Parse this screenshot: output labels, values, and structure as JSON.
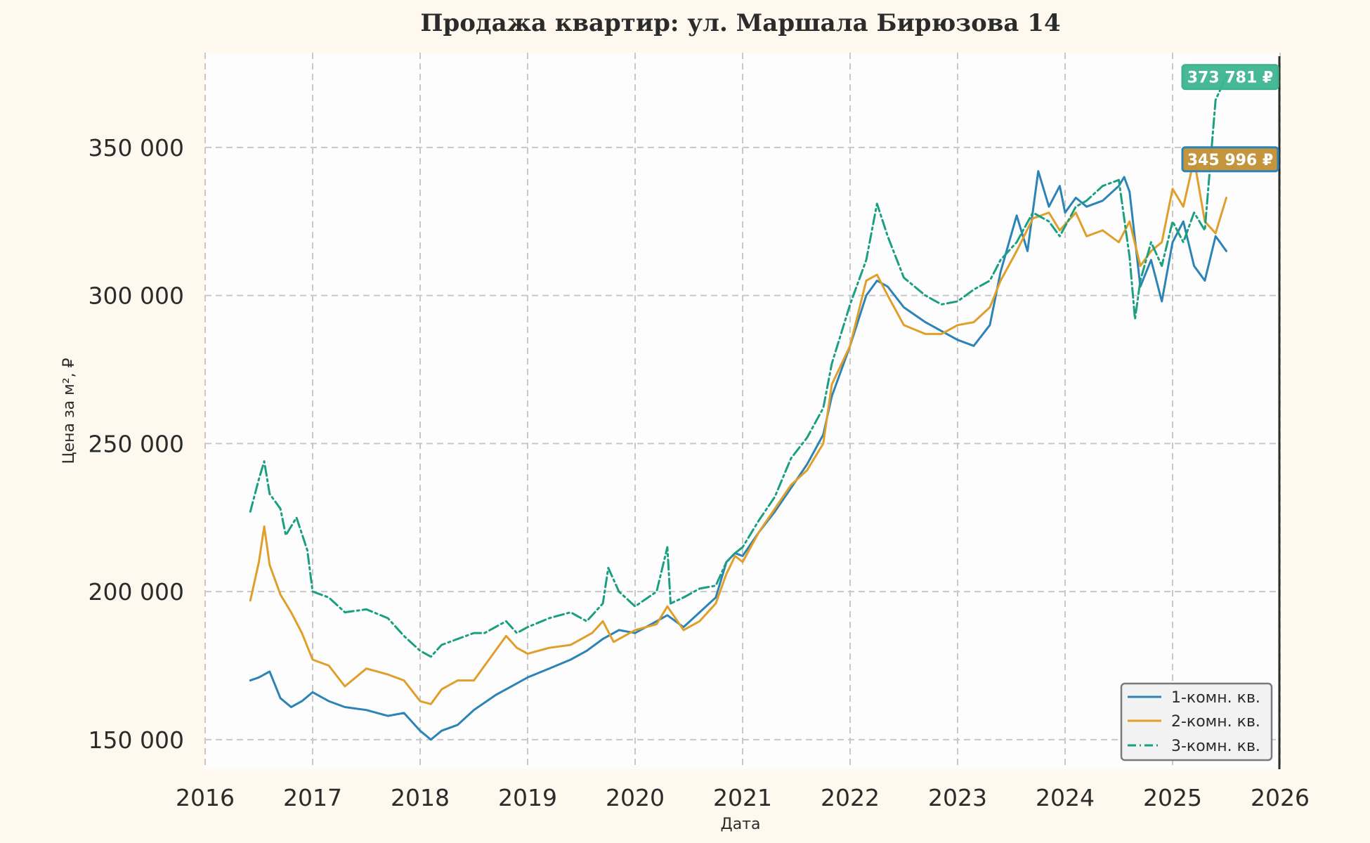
{
  "chart_data": {
    "type": "line",
    "title": "Продажа квартир: ул. Маршала Бирюзова 14",
    "xlabel": "Дата",
    "ylabel": "Цена за м², ₽",
    "xlim": [
      2016,
      2026
    ],
    "ylim": [
      140000,
      382000
    ],
    "x_ticks": [
      2016,
      2017,
      2018,
      2019,
      2020,
      2021,
      2022,
      2023,
      2024,
      2025,
      2026
    ],
    "x_tick_labels": [
      "2016",
      "2017",
      "2018",
      "2019",
      "2020",
      "2021",
      "2022",
      "2023",
      "2024",
      "2025",
      "2026"
    ],
    "y_ticks": [
      150000,
      200000,
      250000,
      300000,
      350000
    ],
    "y_tick_labels": [
      "150 000",
      "200 000",
      "250 000",
      "300 000",
      "350 000"
    ],
    "grid": true,
    "legend_position": "bottom-right",
    "current_marker_x": 2026,
    "series": [
      {
        "name": "1-комн. кв.",
        "color": "#2b83b6",
        "style": "solid",
        "x": [
          2016.42,
          2016.5,
          2016.6,
          2016.7,
          2016.8,
          2016.9,
          2017.0,
          2017.15,
          2017.3,
          2017.5,
          2017.7,
          2017.85,
          2018.0,
          2018.1,
          2018.2,
          2018.35,
          2018.5,
          2018.7,
          2018.9,
          2019.0,
          2019.2,
          2019.4,
          2019.55,
          2019.7,
          2019.85,
          2020.0,
          2020.2,
          2020.3,
          2020.45,
          2020.6,
          2020.75,
          2020.85,
          2020.93,
          2021.0,
          2021.15,
          2021.3,
          2021.45,
          2021.6,
          2021.75,
          2021.83,
          2022.0,
          2022.15,
          2022.25,
          2022.35,
          2022.5,
          2022.7,
          2022.85,
          2023.0,
          2023.15,
          2023.3,
          2023.4,
          2023.55,
          2023.65,
          2023.75,
          2023.85,
          2023.95,
          2024.0,
          2024.1,
          2024.2,
          2024.35,
          2024.5,
          2024.55,
          2024.6,
          2024.7,
          2024.8,
          2024.9,
          2025.0,
          2025.1,
          2025.2,
          2025.3,
          2025.4,
          2025.5
        ],
        "values": [
          170000,
          171000,
          173000,
          164000,
          161000,
          163000,
          166000,
          163000,
          161000,
          160000,
          158000,
          159000,
          153000,
          150000,
          153000,
          155000,
          160000,
          165000,
          169000,
          171000,
          174000,
          177000,
          180000,
          184000,
          187000,
          186000,
          190000,
          192000,
          188000,
          193000,
          198000,
          210000,
          213000,
          212000,
          220000,
          227000,
          235000,
          243000,
          253000,
          266000,
          283000,
          300000,
          305000,
          303000,
          296000,
          291000,
          288000,
          285000,
          283000,
          290000,
          308000,
          327000,
          315000,
          342000,
          330000,
          337000,
          328000,
          333000,
          330000,
          332000,
          337000,
          340000,
          335000,
          303000,
          312000,
          298000,
          318000,
          325000,
          310000,
          305000,
          320000,
          315000
        ]
      },
      {
        "name": "2-комн. кв.",
        "color": "#e09e2a",
        "style": "solid",
        "x": [
          2016.42,
          2016.5,
          2016.55,
          2016.6,
          2016.7,
          2016.8,
          2016.9,
          2017.0,
          2017.15,
          2017.3,
          2017.5,
          2017.7,
          2017.85,
          2018.0,
          2018.1,
          2018.2,
          2018.35,
          2018.5,
          2018.7,
          2018.8,
          2018.9,
          2019.0,
          2019.2,
          2019.4,
          2019.6,
          2019.7,
          2019.8,
          2020.0,
          2020.2,
          2020.3,
          2020.45,
          2020.6,
          2020.75,
          2020.85,
          2020.93,
          2021.0,
          2021.15,
          2021.3,
          2021.45,
          2021.6,
          2021.75,
          2021.83,
          2022.0,
          2022.15,
          2022.25,
          2022.35,
          2022.5,
          2022.7,
          2022.85,
          2023.0,
          2023.15,
          2023.3,
          2023.4,
          2023.55,
          2023.7,
          2023.85,
          2023.95,
          2024.1,
          2024.2,
          2024.35,
          2024.5,
          2024.6,
          2024.7,
          2024.8,
          2024.9,
          2025.0,
          2025.1,
          2025.2,
          2025.3,
          2025.4,
          2025.5
        ],
        "values": [
          197000,
          210000,
          222000,
          209000,
          199000,
          193000,
          186000,
          177000,
          175000,
          168000,
          174000,
          172000,
          170000,
          163000,
          162000,
          167000,
          170000,
          170000,
          180000,
          185000,
          181000,
          179000,
          181000,
          182000,
          186000,
          190000,
          183000,
          187000,
          189000,
          195000,
          187000,
          190000,
          196000,
          206000,
          212000,
          210000,
          220000,
          228000,
          236000,
          241000,
          250000,
          270000,
          283000,
          305000,
          307000,
          300000,
          290000,
          287000,
          287000,
          290000,
          291000,
          296000,
          305000,
          315000,
          326000,
          328000,
          322000,
          328000,
          320000,
          322000,
          318000,
          325000,
          310000,
          315000,
          318000,
          336000,
          330000,
          346000,
          325000,
          321000,
          333000
        ]
      },
      {
        "name": "3-комн. кв.",
        "color": "#1aa081",
        "style": "dashdot",
        "x": [
          2016.42,
          2016.5,
          2016.55,
          2016.6,
          2016.7,
          2016.75,
          2016.85,
          2016.95,
          2017.0,
          2017.15,
          2017.3,
          2017.5,
          2017.7,
          2017.85,
          2018.0,
          2018.1,
          2018.2,
          2018.35,
          2018.5,
          2018.6,
          2018.8,
          2018.9,
          2019.0,
          2019.2,
          2019.4,
          2019.55,
          2019.7,
          2019.75,
          2019.85,
          2020.0,
          2020.2,
          2020.3,
          2020.33,
          2020.45,
          2020.6,
          2020.75,
          2020.85,
          2020.93,
          2021.0,
          2021.15,
          2021.3,
          2021.45,
          2021.6,
          2021.75,
          2021.83,
          2022.0,
          2022.15,
          2022.25,
          2022.35,
          2022.5,
          2022.7,
          2022.85,
          2023.0,
          2023.15,
          2023.3,
          2023.4,
          2023.55,
          2023.7,
          2023.85,
          2023.95,
          2024.1,
          2024.2,
          2024.35,
          2024.5,
          2024.6,
          2024.65,
          2024.7,
          2024.8,
          2024.9,
          2025.0,
          2025.1,
          2025.2,
          2025.3,
          2025.4,
          2025.5
        ],
        "values": [
          227000,
          238000,
          244000,
          233000,
          228000,
          219000,
          225000,
          214000,
          200000,
          198000,
          193000,
          194000,
          191000,
          185000,
          180000,
          178000,
          182000,
          184000,
          186000,
          186000,
          190000,
          186000,
          188000,
          191000,
          193000,
          190000,
          196000,
          208000,
          200000,
          195000,
          200000,
          215000,
          196000,
          198000,
          201000,
          202000,
          210000,
          213000,
          215000,
          224000,
          232000,
          245000,
          252000,
          262000,
          277000,
          297000,
          312000,
          331000,
          320000,
          306000,
          300000,
          297000,
          298000,
          302000,
          305000,
          312000,
          318000,
          328000,
          325000,
          320000,
          330000,
          332000,
          337000,
          339000,
          313000,
          292000,
          305000,
          318000,
          310000,
          325000,
          318000,
          328000,
          322000,
          366000,
          374000
        ]
      }
    ],
    "badges": [
      {
        "text": "373 781 ₽",
        "value": 373781,
        "fill": "#3db590",
        "stroke": "#3db590"
      },
      {
        "text": "345 996 ₽",
        "value": 345996,
        "fill": "#c18f33",
        "stroke": "#2b83b6"
      }
    ]
  }
}
